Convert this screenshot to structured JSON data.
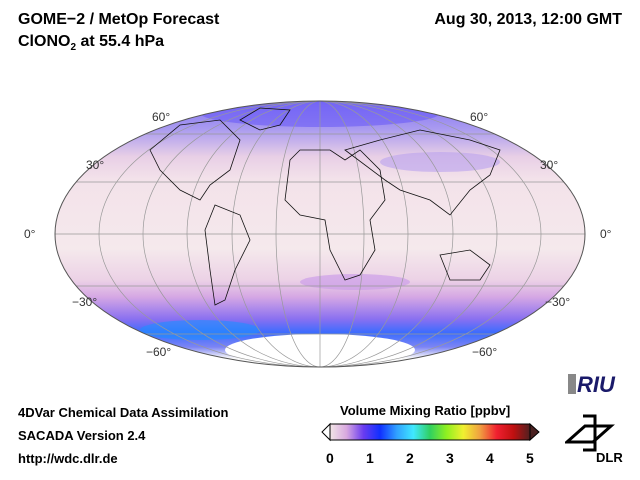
{
  "header": {
    "title": "GOME−2 / MetOp Forecast",
    "species_main": "ClONO",
    "species_sub": "2",
    "species_rest": " at 55.4 hPa",
    "datetime": "Aug 30, 2013, 12:00 GMT"
  },
  "map": {
    "projection": "Mollweide",
    "lat_labels": {
      "n60": "60°",
      "n30": "30°",
      "eq": "0°",
      "s30": "−30°",
      "s60": "−60°"
    }
  },
  "footer": {
    "line1": "4DVar Chemical Data Assimilation",
    "line2": "SACADA Version 2.4",
    "line3": "http://wdc.dlr.de"
  },
  "colorbar": {
    "title": "Volume Mixing Ratio [ppbv]",
    "ticks": [
      "0",
      "1",
      "2",
      "3",
      "4",
      "5"
    ],
    "colors": [
      "#f2e6e6",
      "#d8a8e0",
      "#6a3cf0",
      "#1030ff",
      "#30a0ff",
      "#40e8ff",
      "#30d060",
      "#90f020",
      "#f0f030",
      "#f0a040",
      "#f02030",
      "#c01010",
      "#502020"
    ]
  },
  "logos": {
    "riu": "RIU",
    "dlr": "DLR"
  }
}
